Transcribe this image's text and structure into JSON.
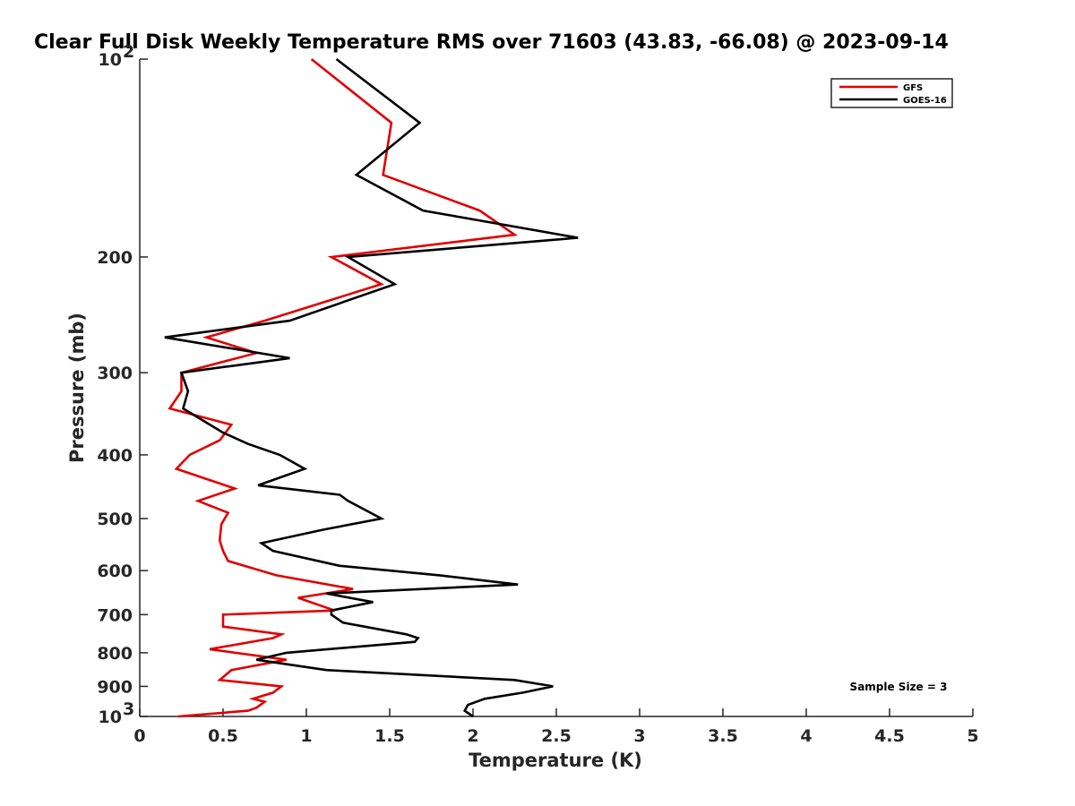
{
  "chart_data": {
    "type": "line",
    "title": "Clear Full Disk Weekly Temperature RMS over 71603 (43.83, -66.08) @ 2023-09-14",
    "xlabel": "Temperature (K)",
    "ylabel": "Pressure (mb)",
    "xlim": [
      0,
      5
    ],
    "ylim": [
      1000,
      100
    ],
    "y_scale": "log",
    "x_ticks": [
      "0",
      "0.5",
      "1",
      "1.5",
      "2",
      "2.5",
      "3",
      "3.5",
      "4",
      "4.5",
      "5"
    ],
    "y_ticks": [
      {
        "value": 100,
        "label": "10",
        "sup": "2"
      },
      {
        "value": 200,
        "label": "200",
        "sup": ""
      },
      {
        "value": 300,
        "label": "300",
        "sup": ""
      },
      {
        "value": 400,
        "label": "400",
        "sup": ""
      },
      {
        "value": 500,
        "label": "500",
        "sup": ""
      },
      {
        "value": 600,
        "label": "600",
        "sup": ""
      },
      {
        "value": 700,
        "label": "700",
        "sup": ""
      },
      {
        "value": 800,
        "label": "800",
        "sup": ""
      },
      {
        "value": 900,
        "label": "900",
        "sup": ""
      },
      {
        "value": 1000,
        "label": "10",
        "sup": "3"
      }
    ],
    "legend_position": "top-right",
    "grid": false,
    "annotation": "Sample Size = 3",
    "series": [
      {
        "name": "GFS",
        "color": "#e00000",
        "points": [
          [
            1.03,
            100
          ],
          [
            1.51,
            125
          ],
          [
            1.46,
            150
          ],
          [
            2.04,
            170
          ],
          [
            2.25,
            185
          ],
          [
            1.15,
            200
          ],
          [
            1.45,
            220
          ],
          [
            0.75,
            250
          ],
          [
            0.4,
            265
          ],
          [
            0.7,
            280
          ],
          [
            0.25,
            300
          ],
          [
            0.25,
            320
          ],
          [
            0.18,
            340
          ],
          [
            0.55,
            360
          ],
          [
            0.48,
            380
          ],
          [
            0.3,
            400
          ],
          [
            0.22,
            420
          ],
          [
            0.57,
            450
          ],
          [
            0.35,
            470
          ],
          [
            0.53,
            490
          ],
          [
            0.49,
            510
          ],
          [
            0.48,
            540
          ],
          [
            0.5,
            560
          ],
          [
            0.53,
            580
          ],
          [
            0.82,
            610
          ],
          [
            1.28,
            640
          ],
          [
            0.95,
            660
          ],
          [
            1.17,
            690
          ],
          [
            0.5,
            700
          ],
          [
            0.5,
            730
          ],
          [
            0.85,
            750
          ],
          [
            0.8,
            760
          ],
          [
            0.42,
            790
          ],
          [
            0.88,
            820
          ],
          [
            0.55,
            850
          ],
          [
            0.48,
            880
          ],
          [
            0.85,
            900
          ],
          [
            0.8,
            920
          ],
          [
            0.68,
            940
          ],
          [
            0.75,
            950
          ],
          [
            0.7,
            970
          ],
          [
            0.65,
            980
          ],
          [
            0.23,
            1000
          ]
        ]
      },
      {
        "name": "GOES-16",
        "color": "#000000",
        "points": [
          [
            1.18,
            100
          ],
          [
            1.68,
            125
          ],
          [
            1.3,
            150
          ],
          [
            1.7,
            170
          ],
          [
            2.63,
            187
          ],
          [
            1.25,
            200
          ],
          [
            1.53,
            220
          ],
          [
            0.9,
            250
          ],
          [
            0.15,
            265
          ],
          [
            0.9,
            285
          ],
          [
            0.25,
            300
          ],
          [
            0.29,
            320
          ],
          [
            0.26,
            340
          ],
          [
            0.5,
            370
          ],
          [
            0.65,
            385
          ],
          [
            0.84,
            400
          ],
          [
            0.99,
            420
          ],
          [
            0.71,
            445
          ],
          [
            1.2,
            460
          ],
          [
            1.25,
            470
          ],
          [
            1.45,
            500
          ],
          [
            1.1,
            520
          ],
          [
            0.73,
            545
          ],
          [
            0.8,
            560
          ],
          [
            1.2,
            590
          ],
          [
            1.8,
            610
          ],
          [
            2.27,
            630
          ],
          [
            1.12,
            650
          ],
          [
            1.4,
            670
          ],
          [
            1.15,
            690
          ],
          [
            1.15,
            700
          ],
          [
            1.22,
            720
          ],
          [
            1.6,
            750
          ],
          [
            1.67,
            760
          ],
          [
            1.65,
            770
          ],
          [
            0.88,
            800
          ],
          [
            0.7,
            820
          ],
          [
            1.12,
            850
          ],
          [
            2.25,
            880
          ],
          [
            2.48,
            900
          ],
          [
            2.3,
            920
          ],
          [
            2.07,
            940
          ],
          [
            1.97,
            960
          ],
          [
            1.95,
            980
          ],
          [
            2.0,
            1000
          ]
        ]
      }
    ]
  }
}
